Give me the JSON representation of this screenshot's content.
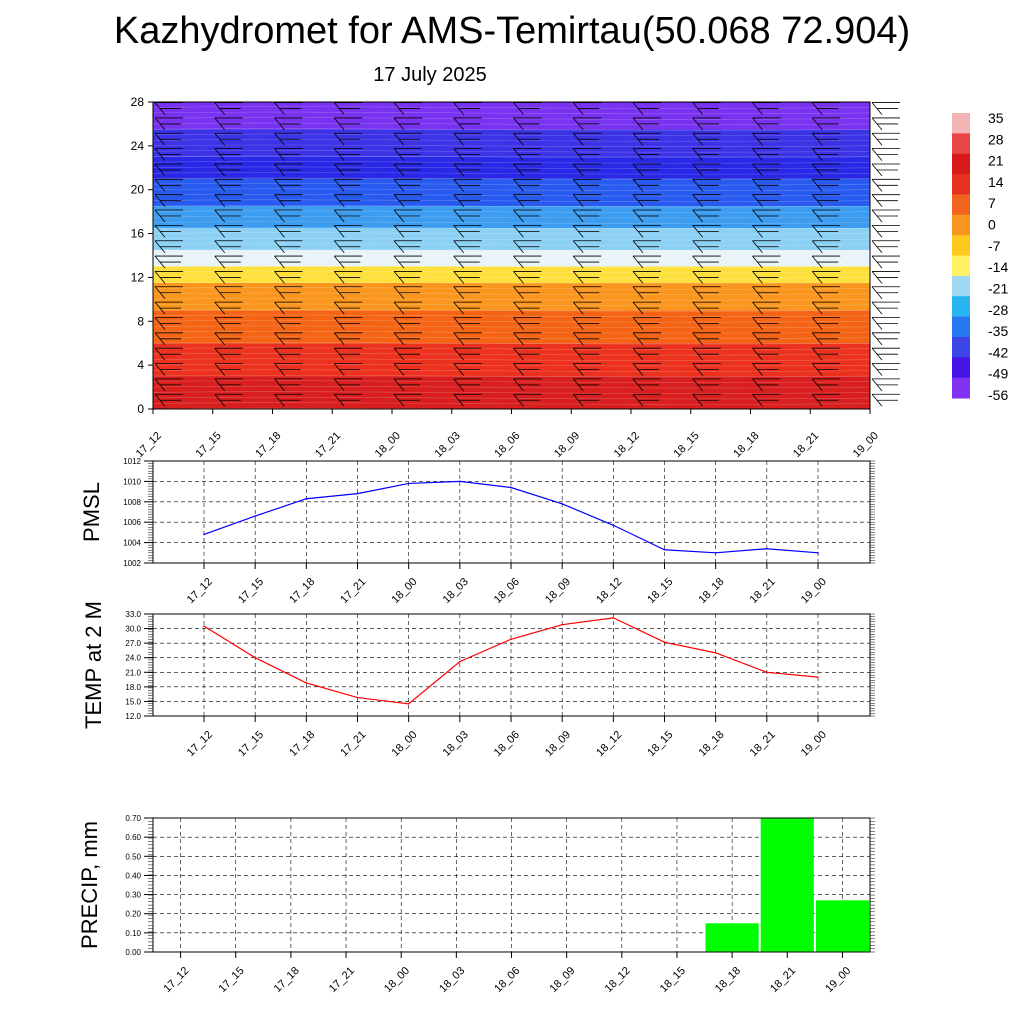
{
  "header": {
    "title": "Kazhydromet for AMS-Temirtau(50.068 72.904)",
    "date": "17 July 2025"
  },
  "chart_data": [
    {
      "type": "heatmap",
      "title": "",
      "xlabel": "",
      "ylabel": "",
      "x_ticks": [
        "17_12",
        "17_15",
        "17_18",
        "17_21",
        "18_00",
        "18_03",
        "18_06",
        "18_09",
        "18_12",
        "18_15",
        "18_18",
        "18_21",
        "19_00"
      ],
      "y_ticks": [
        0,
        4,
        8,
        12,
        16,
        20,
        24,
        28
      ],
      "ylim": [
        0,
        28
      ],
      "colorbar": {
        "labels": [
          "35",
          "28",
          "21",
          "14",
          "7",
          "0",
          "-7",
          "-14",
          "-21",
          "-28",
          "-35",
          "-42",
          "-49",
          "-56"
        ],
        "colors": [
          "#f2b4b4",
          "#e84646",
          "#d61a1a",
          "#e6321e",
          "#f0641e",
          "#f7961e",
          "#fcc81e",
          "#fff064",
          "#9fd8f0",
          "#28b4f0",
          "#2878f0",
          "#3c46e6",
          "#4614e6",
          "#8232f0"
        ]
      },
      "bands": [
        {
          "from": 0,
          "to": 3,
          "color": "#d81e1e"
        },
        {
          "from": 3,
          "to": 6,
          "color": "#ec321e"
        },
        {
          "from": 6,
          "to": 9,
          "color": "#f46414"
        },
        {
          "from": 9,
          "to": 11.5,
          "color": "#fa961e"
        },
        {
          "from": 11.5,
          "to": 13,
          "color": "#fde03c"
        },
        {
          "from": 13,
          "to": 14.5,
          "color": "#e8f4f8"
        },
        {
          "from": 14.5,
          "to": 16.5,
          "color": "#8cd0f4"
        },
        {
          "from": 16.5,
          "to": 18.5,
          "color": "#3c9cf0"
        },
        {
          "from": 18.5,
          "to": 21,
          "color": "#285af0"
        },
        {
          "from": 21,
          "to": 23,
          "color": "#2828e6"
        },
        {
          "from": 23,
          "to": 25.5,
          "color": "#3c32e6"
        },
        {
          "from": 25.5,
          "to": 28,
          "color": "#7832f0"
        }
      ],
      "wind_barb_levels": [
        0.8,
        2.2,
        3.6,
        5.0,
        6.4,
        7.8,
        9.2,
        10.6,
        12.0,
        13.4,
        14.8,
        16.2,
        17.6,
        19.0,
        20.4,
        21.8,
        23.2,
        24.6,
        26.0,
        27.4
      ]
    },
    {
      "type": "line",
      "ylabel": "PMSL",
      "xlabel": "",
      "x": [
        "17_12",
        "17_15",
        "17_18",
        "17_21",
        "18_00",
        "18_03",
        "18_06",
        "18_09",
        "18_12",
        "18_15",
        "18_18",
        "18_21",
        "19_00"
      ],
      "y_ticks": [
        "1002",
        "1004",
        "1006",
        "1008",
        "1010",
        "1012"
      ],
      "ylim": [
        1002,
        1012
      ],
      "grid": true,
      "series": [
        {
          "color": "#0000ff",
          "values": [
            1004.8,
            1006.6,
            1008.3,
            1008.8,
            1009.8,
            1010.0,
            1009.4,
            1007.8,
            1005.7,
            1003.3,
            1003.0,
            1003.4,
            1003.0
          ]
        }
      ]
    },
    {
      "type": "line",
      "ylabel": "TEMP at 2 M",
      "xlabel": "",
      "x": [
        "17_12",
        "17_15",
        "17_18",
        "17_21",
        "18_00",
        "18_03",
        "18_06",
        "18_09",
        "18_12",
        "18_15",
        "18_18",
        "18_21",
        "19_00"
      ],
      "y_ticks": [
        "12.0",
        "15.0",
        "18.0",
        "21.0",
        "24.0",
        "27.0",
        "30.0",
        "33.0"
      ],
      "ylim": [
        12,
        33
      ],
      "grid": true,
      "series": [
        {
          "color": "#ff0000",
          "values": [
            30.5,
            24.0,
            18.8,
            15.8,
            14.5,
            23.2,
            27.8,
            30.8,
            32.2,
            27.2,
            25.0,
            21.0,
            20.0
          ]
        }
      ]
    },
    {
      "type": "bar",
      "ylabel": "PRECIP, mm",
      "xlabel": "",
      "categories": [
        "17_12",
        "17_15",
        "17_18",
        "17_21",
        "18_00",
        "18_03",
        "18_06",
        "18_09",
        "18_12",
        "18_15",
        "18_18",
        "18_21",
        "19_00"
      ],
      "y_ticks": [
        "0.00",
        "0.10",
        "0.20",
        "0.30",
        "0.40",
        "0.50",
        "0.60",
        "0.70"
      ],
      "ylim": [
        0,
        0.7
      ],
      "grid": true,
      "bar_color": "#00ff00",
      "values": [
        0,
        0,
        0,
        0,
        0,
        0,
        0,
        0,
        0,
        0,
        0.15,
        0.7,
        0.27
      ]
    }
  ]
}
